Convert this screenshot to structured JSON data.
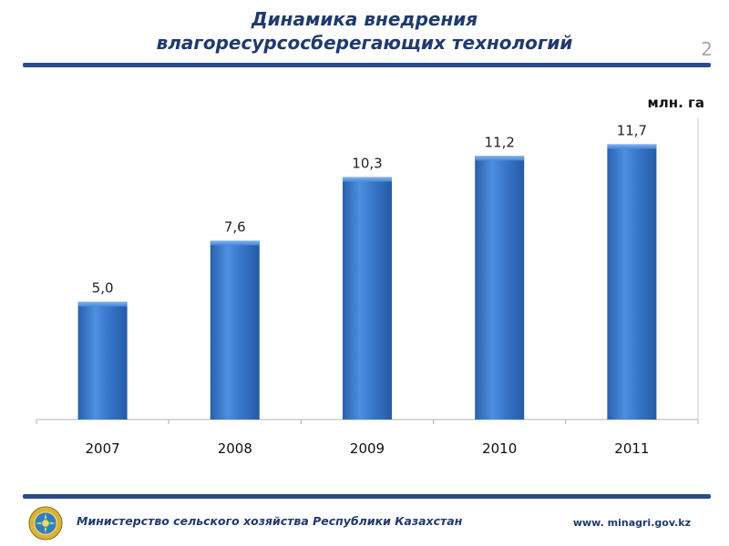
{
  "slide": {
    "title_line1": "Динамика  внедрения",
    "title_line2": "влагоресурсосберегающих технологий",
    "page_number": "2",
    "unit": "млн. га"
  },
  "footer": {
    "organization": "Министерство сельского хозяйства Республики Казахстан",
    "url": "www. minagri.gov.kz"
  },
  "colors": {
    "title": "#1f3a6e",
    "rule": "#2b4a8b",
    "bar": "#3a78cc",
    "bar_light": "#6aa3e8",
    "bar_dark": "#2a5fae"
  },
  "chart_data": {
    "type": "bar",
    "categories": [
      "2007",
      "2008",
      "2009",
      "2010",
      "2011"
    ],
    "values": [
      5.0,
      7.6,
      10.3,
      11.2,
      11.7
    ],
    "value_labels": [
      "5,0",
      "7,6",
      "10,3",
      "11,2",
      "11,7"
    ],
    "ylim": [
      0,
      12.8
    ],
    "grid": false,
    "legend": "none"
  }
}
